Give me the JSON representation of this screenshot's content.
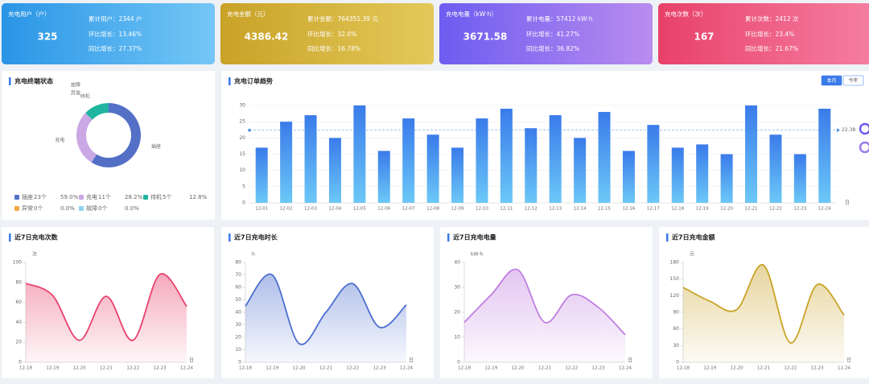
{
  "cards": [
    {
      "title": "充电用户（户）",
      "value": 325,
      "total": "累计用户：2344 户",
      "mom": "环比增长：13.46%",
      "yoy": "同比增长：27.37%",
      "gradient": [
        "#2a95e6",
        "#74c7f6"
      ]
    },
    {
      "title": "充电金额（元）",
      "value": 4386.42,
      "total": "累计金额：764351.39 元",
      "mom": "环比增长：32.0%",
      "yoy": "同比增长：16.78%",
      "gradient": [
        "#c9a227",
        "#e3c95a"
      ]
    },
    {
      "title": "充电电量（kW·h）",
      "value": 3671.58,
      "total": "累计电量：57412 kW·h",
      "mom": "环比增长：41.27%",
      "yoy": "同比增长：36.82%",
      "gradient": [
        "#6d5cf0",
        "#b98cef"
      ]
    },
    {
      "title": "充电次数（次）",
      "value": 167,
      "total": "累计次数：2412 次",
      "mom": "环比增长：23.4%",
      "yoy": "同比增长：21.67%",
      "gradient": [
        "#e8416a",
        "#f57ea0"
      ]
    }
  ],
  "chart_data": [
    {
      "type": "pie",
      "title": "充电终端状态",
      "categories": [
        "插座",
        "充电",
        "待机",
        "异常",
        "故障"
      ],
      "values": [
        23,
        11,
        5,
        0,
        0
      ],
      "value_labels": [
        "23个",
        "11个",
        "5个",
        "0个",
        "0个"
      ],
      "percent_labels": [
        "59.0%",
        "28.2%",
        "12.8%",
        "0.0%",
        "0.0%"
      ],
      "colors": [
        "#5470c6",
        "#c9a8e4",
        "#1fb5a0",
        "#f5a742",
        "#8fd3f0"
      ]
    },
    {
      "type": "bar",
      "title": "充电订单趋势",
      "buttons": [
        "本月",
        "今年"
      ],
      "categories": [
        "12-01",
        "12-02",
        "12-03",
        "12-04",
        "12-05",
        "12-06",
        "12-07",
        "12-08",
        "12-09",
        "12-10",
        "12-11",
        "12-12",
        "12-13",
        "12-14",
        "12-15",
        "12-16",
        "12-17",
        "12-18",
        "12-19",
        "12-20",
        "12-21",
        "12-22",
        "12-23",
        "12-24"
      ],
      "values": [
        17,
        25,
        27,
        20,
        30,
        16,
        26,
        21,
        17,
        26,
        29,
        23,
        27,
        20,
        28,
        16,
        24,
        17,
        18,
        15,
        30,
        21,
        15,
        29
      ],
      "ylim": [
        0,
        30
      ],
      "yticks": [
        0,
        5,
        10,
        15,
        20,
        25,
        30
      ],
      "x_unit": "日",
      "mark_line": 22.38,
      "color": "#3a7bea"
    },
    {
      "type": "line",
      "title": "近7日充电次数",
      "y_unit": "次",
      "x_unit": "日",
      "categories": [
        "12-18",
        "12-19",
        "12-20",
        "12-21",
        "12-22",
        "12-23",
        "12-24"
      ],
      "values": [
        79,
        67,
        22,
        66,
        22,
        88,
        56
      ],
      "ylim": [
        0,
        100
      ],
      "yticks": [
        0,
        20,
        40,
        60,
        80,
        100
      ],
      "color": "#e8416a"
    },
    {
      "type": "line",
      "title": "近7日充电时长",
      "y_unit": "h",
      "x_unit": "日",
      "categories": [
        "12-18",
        "12-19",
        "12-20",
        "12-21",
        "12-22",
        "12-23",
        "12-24"
      ],
      "values": [
        45,
        70,
        15,
        40,
        63,
        28,
        46
      ],
      "ylim": [
        0,
        80
      ],
      "yticks": [
        0,
        10,
        20,
        30,
        40,
        50,
        60,
        70,
        80
      ],
      "color": "#4c6fcf"
    },
    {
      "type": "line",
      "title": "近7日充电电量",
      "y_unit": "kW·h",
      "x_unit": "日",
      "categories": [
        "12-18",
        "12-19",
        "12-20",
        "12-21",
        "12-22",
        "12-23",
        "12-24"
      ],
      "values": [
        16,
        27,
        37,
        16,
        27,
        22,
        11
      ],
      "ylim": [
        0,
        40
      ],
      "yticks": [
        0,
        10,
        20,
        30,
        40
      ],
      "color": "#c07fe0"
    },
    {
      "type": "line",
      "title": "近7日充电金额",
      "y_unit": "元",
      "x_unit": "日",
      "categories": [
        "12-18",
        "12-19",
        "12-20",
        "12-21",
        "12-22",
        "12-23",
        "12-24"
      ],
      "values": [
        135,
        110,
        95,
        175,
        35,
        140,
        85
      ],
      "ylim": [
        0,
        180
      ],
      "yticks": [
        0,
        30,
        60,
        90,
        120,
        150,
        180
      ],
      "color": "#c9a227"
    }
  ]
}
